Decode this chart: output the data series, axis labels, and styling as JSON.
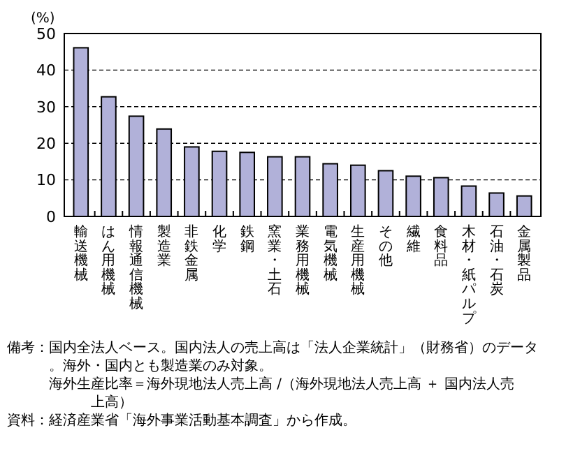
{
  "chart_data": {
    "type": "bar",
    "ylabel": "(%)",
    "categories": [
      "輸送機械",
      "はん用機械",
      "情報通信機械",
      "製造業",
      "非鉄金属",
      "化学",
      "鉄鋼",
      "窯業・土石",
      "業務用機械",
      "電気機械",
      "生産用機械",
      "その他",
      "繊維",
      "食料品",
      "木材・紙パルプ",
      "石油・石炭",
      "金属製品"
    ],
    "values": [
      46.1,
      32.7,
      27.4,
      23.9,
      19.0,
      17.8,
      17.5,
      16.3,
      16.3,
      14.4,
      14.0,
      12.5,
      11.0,
      10.6,
      8.3,
      6.4,
      5.6
    ],
    "color": "#b1b1d9",
    "ylim": [
      0,
      50
    ],
    "yticks": [
      0,
      10,
      20,
      30,
      40,
      50
    ],
    "grid": "y",
    "annotations": [
      "備考：国内全法人ベース。国内法人の売上高は「法人企業統計」（財務省）のデータ。海外・国内とも製造業のみ対象。",
      "海外生産比率＝海外現地法人売上高 /（海外現地法人売上高 ＋ 国内法人売上高）",
      "資料：経済産業省「海外事業活動基本調査」から作成。"
    ]
  }
}
